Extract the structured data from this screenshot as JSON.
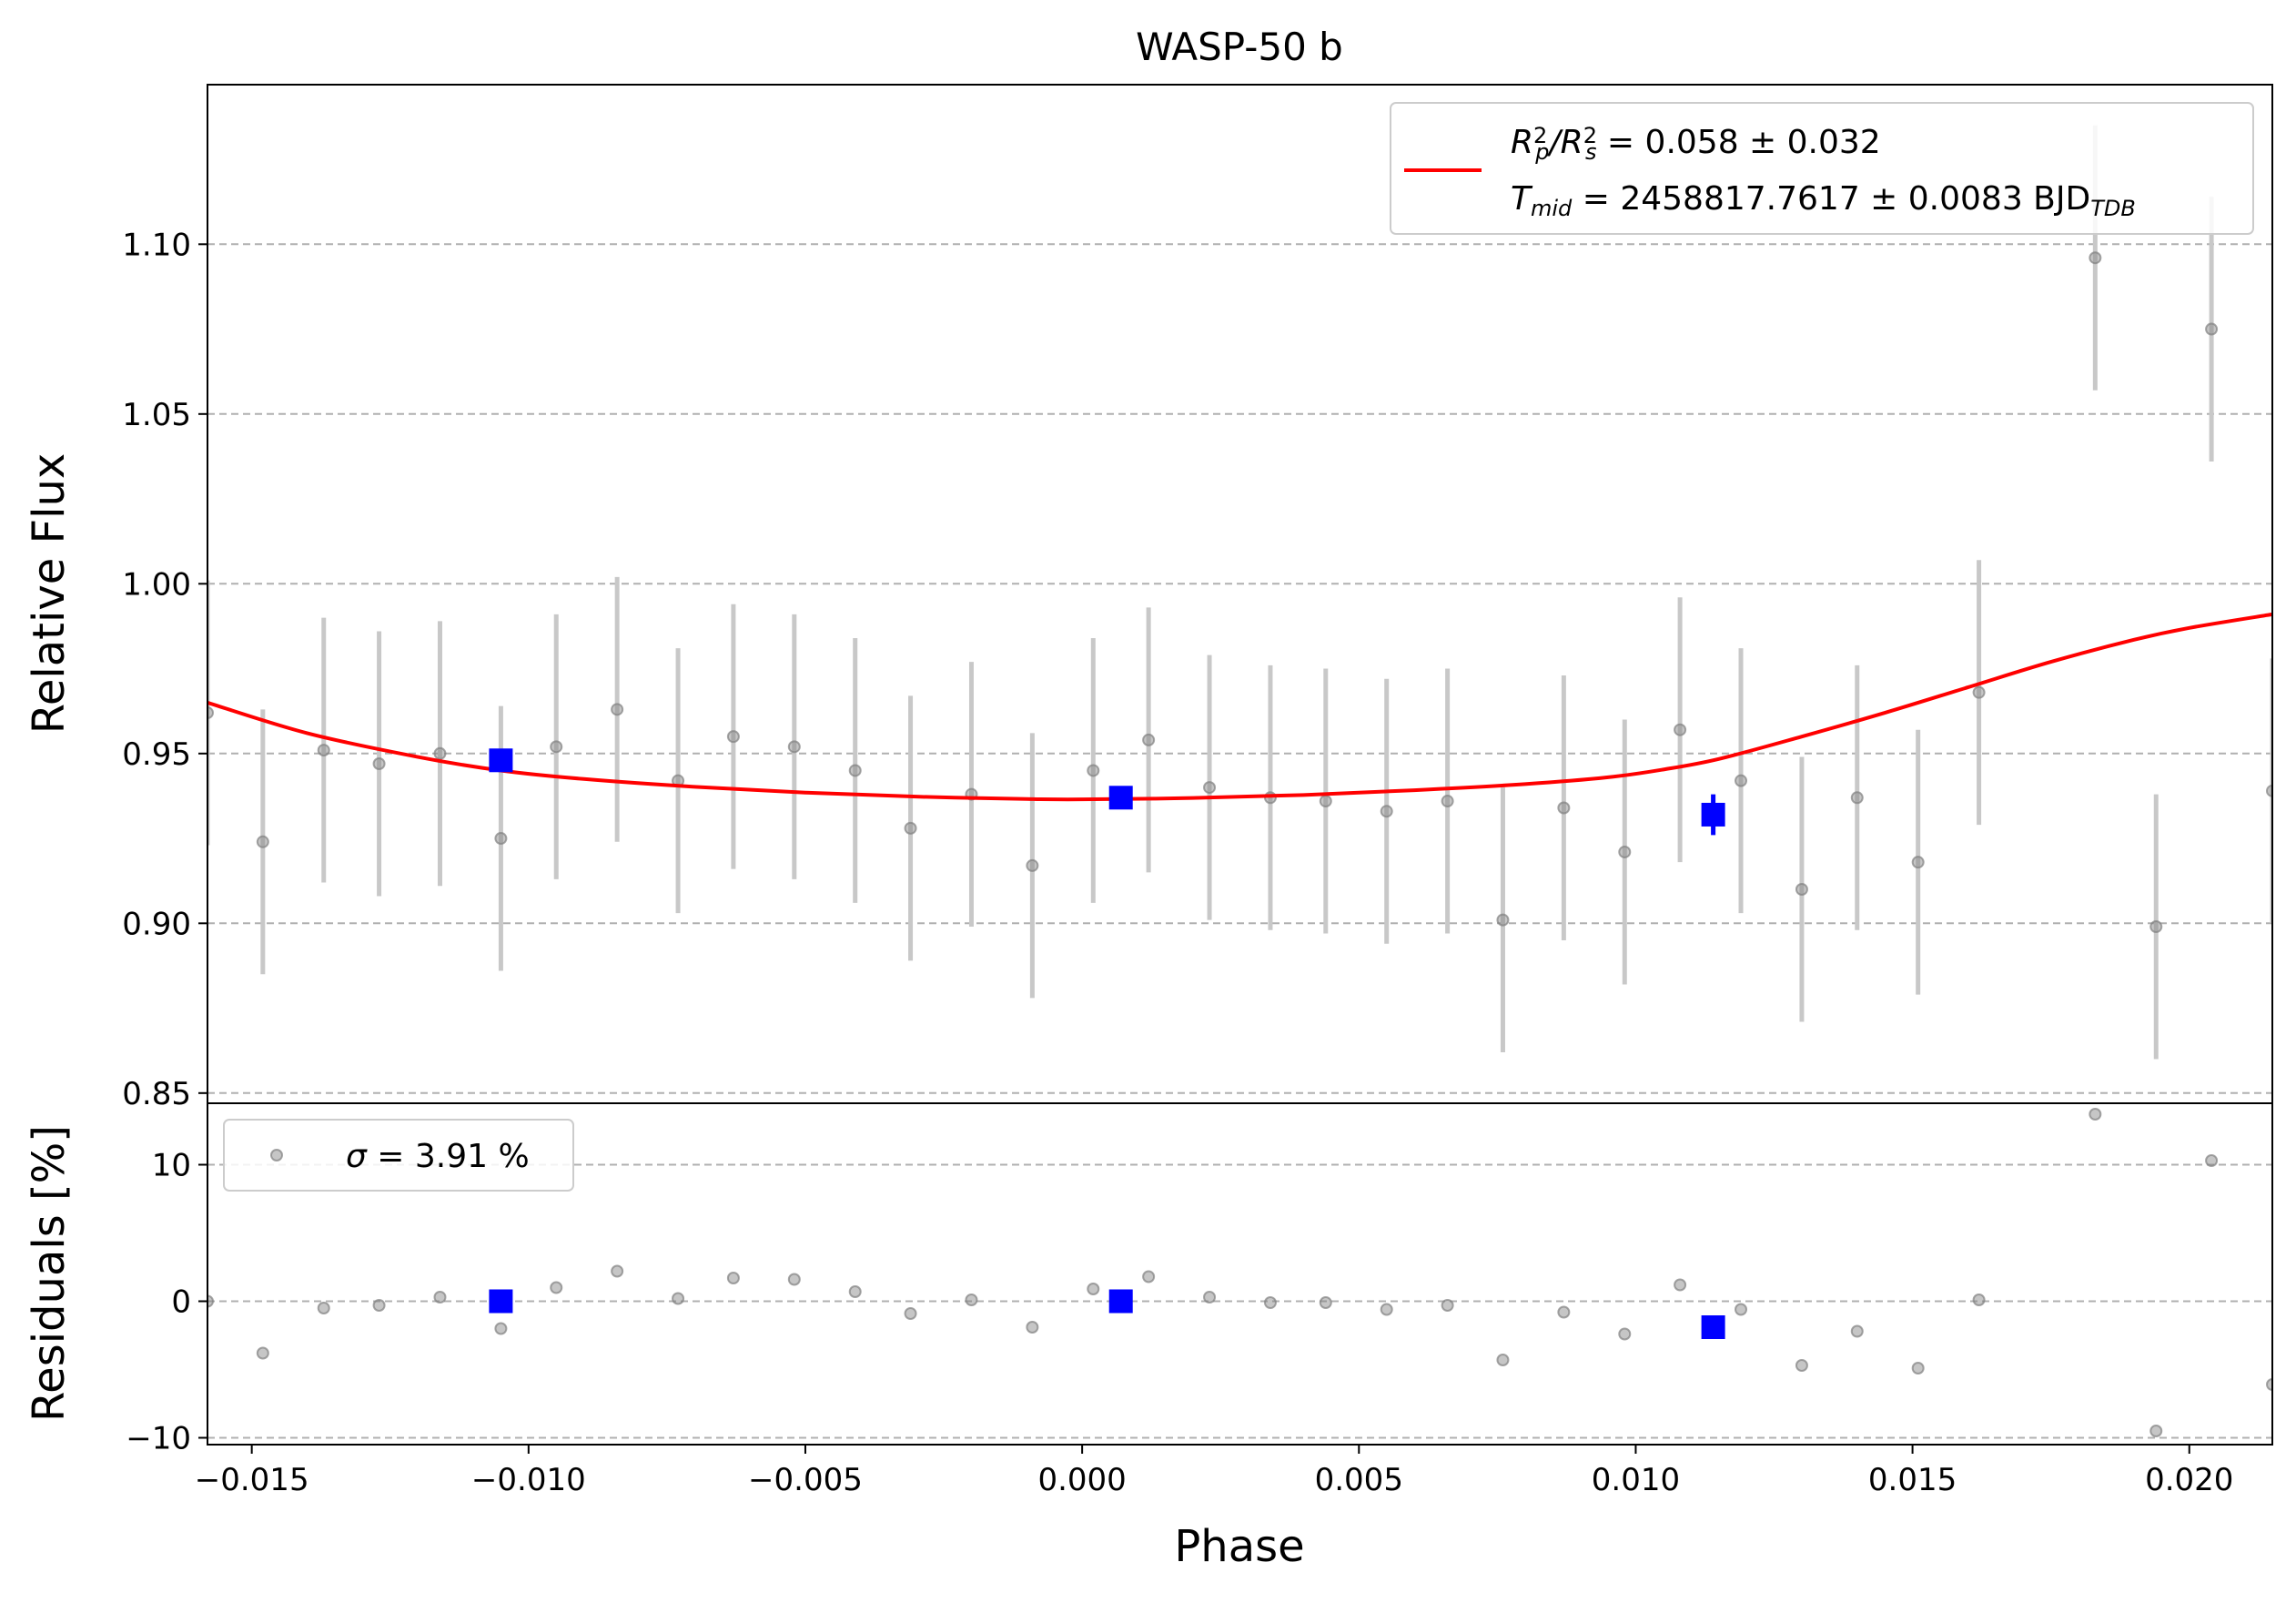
{
  "chart_data": {
    "type": "scatter",
    "title": "WASP-50 b",
    "xlabel": "Phase",
    "xlim": [
      -0.0158,
      0.0215
    ],
    "xticks": [
      -0.015,
      -0.01,
      -0.005,
      0.0,
      0.005,
      0.01,
      0.015,
      0.02
    ],
    "xtick_labels": [
      "−0.015",
      "−0.010",
      "−0.005",
      "0.000",
      "0.005",
      "0.010",
      "0.015",
      "0.020"
    ],
    "grid": "horizontal-dashed",
    "top_panel": {
      "ylabel": "Relative Flux",
      "ylim": [
        0.847,
        1.147
      ],
      "yticks": [
        0.85,
        0.9,
        0.95,
        1.0,
        1.05,
        1.1
      ],
      "ytick_labels": [
        "0.85",
        "0.90",
        "0.95",
        "1.00",
        "1.05",
        "1.10"
      ],
      "legend": {
        "placement": "top-right",
        "entries": [
          {
            "type": "line",
            "color": "#ff0000",
            "line1": {
              "a": "R",
              "a_sup": "2",
              "a_sub": "p",
              "slash": "/",
              "b": "R",
              "b_sup": "2",
              "b_sub": "s",
              "rest": " = 0.058 ± 0.032"
            },
            "line2": {
              "a": "T",
              "a_sub": "mid",
              "rest": " = 2458817.7617 ± 0.0083 BJD",
              "unit_sub": "TDB"
            }
          }
        ]
      },
      "data_points": {
        "color": "#808080",
        "errorbar_color": "#c8c8c8",
        "x": [
          -0.0158,
          -0.0148,
          -0.0137,
          -0.0127,
          -0.0116,
          -0.0105,
          -0.0095,
          -0.0084,
          -0.0073,
          -0.0063,
          -0.0052,
          -0.0041,
          -0.0031,
          -0.002,
          -0.0009,
          0.0002,
          0.0012,
          0.0023,
          0.0034,
          0.0044,
          0.0055,
          0.0066,
          0.0076,
          0.0087,
          0.0098,
          0.0108,
          0.0119,
          0.013,
          0.014,
          0.0151,
          0.0162,
          0.0183,
          0.0194,
          0.0204,
          0.0215
        ],
        "y": [
          0.962,
          0.924,
          0.951,
          0.947,
          0.95,
          0.925,
          0.952,
          0.963,
          0.942,
          0.955,
          0.952,
          0.945,
          0.928,
          0.938,
          0.917,
          0.945,
          0.954,
          0.94,
          0.937,
          0.936,
          0.933,
          0.936,
          0.901,
          0.934,
          0.921,
          0.957,
          0.942,
          0.91,
          0.937,
          0.918,
          0.968,
          1.096,
          0.899,
          1.075,
          0.939
        ],
        "yerr": [
          0.039,
          0.039,
          0.039,
          0.039,
          0.039,
          0.039,
          0.039,
          0.039,
          0.039,
          0.039,
          0.039,
          0.039,
          0.039,
          0.039,
          0.039,
          0.039,
          0.039,
          0.039,
          0.039,
          0.039,
          0.039,
          0.039,
          0.039,
          0.039,
          0.039,
          0.039,
          0.039,
          0.039,
          0.039,
          0.039,
          0.039,
          0.039,
          0.039,
          0.039,
          0.039
        ]
      },
      "binned_points": {
        "color": "#0000ff",
        "x": [
          -0.0105,
          0.0007,
          0.0114
        ],
        "y": [
          0.948,
          0.937,
          0.932
        ],
        "yerr": [
          0.003,
          0.003,
          0.006
        ]
      },
      "model_curve": {
        "color": "#ff0000",
        "x": [
          -0.0158,
          -0.014,
          -0.012,
          -0.0105,
          -0.009,
          -0.007,
          -0.005,
          -0.003,
          -0.001,
          0.0,
          0.002,
          0.004,
          0.006,
          0.008,
          0.0095,
          0.0105,
          0.0115,
          0.013,
          0.0145,
          0.016,
          0.0175,
          0.019,
          0.02,
          0.0215
        ],
        "y": [
          0.965,
          0.956,
          0.949,
          0.945,
          0.9425,
          0.9402,
          0.9385,
          0.9373,
          0.9366,
          0.9365,
          0.9369,
          0.9378,
          0.9392,
          0.941,
          0.943,
          0.9453,
          0.9484,
          0.955,
          0.962,
          0.9695,
          0.977,
          0.9835,
          0.987,
          0.991
        ]
      }
    },
    "bottom_panel": {
      "ylabel": "Residuals [%]",
      "ylim": [
        -10.5,
        14.5
      ],
      "yticks": [
        -10,
        0,
        10
      ],
      "ytick_labels": [
        "−10",
        "0",
        "10"
      ],
      "legend": {
        "placement": "top-left",
        "entries": [
          {
            "type": "marker",
            "color": "#808080",
            "sym": "σ",
            "rest": " = 3.91 %"
          }
        ]
      },
      "data_points": {
        "color": "#808080",
        "x": [
          -0.0158,
          -0.0148,
          -0.0137,
          -0.0127,
          -0.0116,
          -0.0105,
          -0.0095,
          -0.0084,
          -0.0073,
          -0.0063,
          -0.0052,
          -0.0041,
          -0.0031,
          -0.002,
          -0.0009,
          0.0002,
          0.0012,
          0.0023,
          0.0034,
          0.0044,
          0.0055,
          0.0066,
          0.0076,
          0.0087,
          0.0098,
          0.0108,
          0.0119,
          0.013,
          0.014,
          0.0151,
          0.0162,
          0.0183,
          0.0194,
          0.0204,
          0.0215
        ],
        "y": [
          0.0,
          -3.8,
          -0.5,
          -0.3,
          0.3,
          -2.0,
          1.0,
          2.2,
          0.2,
          1.7,
          1.6,
          0.7,
          -0.9,
          0.1,
          -1.9,
          0.9,
          1.8,
          0.3,
          -0.1,
          -0.1,
          -0.6,
          -0.3,
          -4.3,
          -0.8,
          -2.4,
          1.2,
          -0.6,
          -4.7,
          -2.2,
          -4.9,
          0.1,
          13.7,
          -9.5,
          10.3,
          -6.1
        ]
      },
      "binned_points": {
        "color": "#0000ff",
        "x": [
          -0.0105,
          0.0007,
          0.0114
        ],
        "y": [
          0.0,
          0.0,
          -1.9
        ]
      }
    }
  }
}
